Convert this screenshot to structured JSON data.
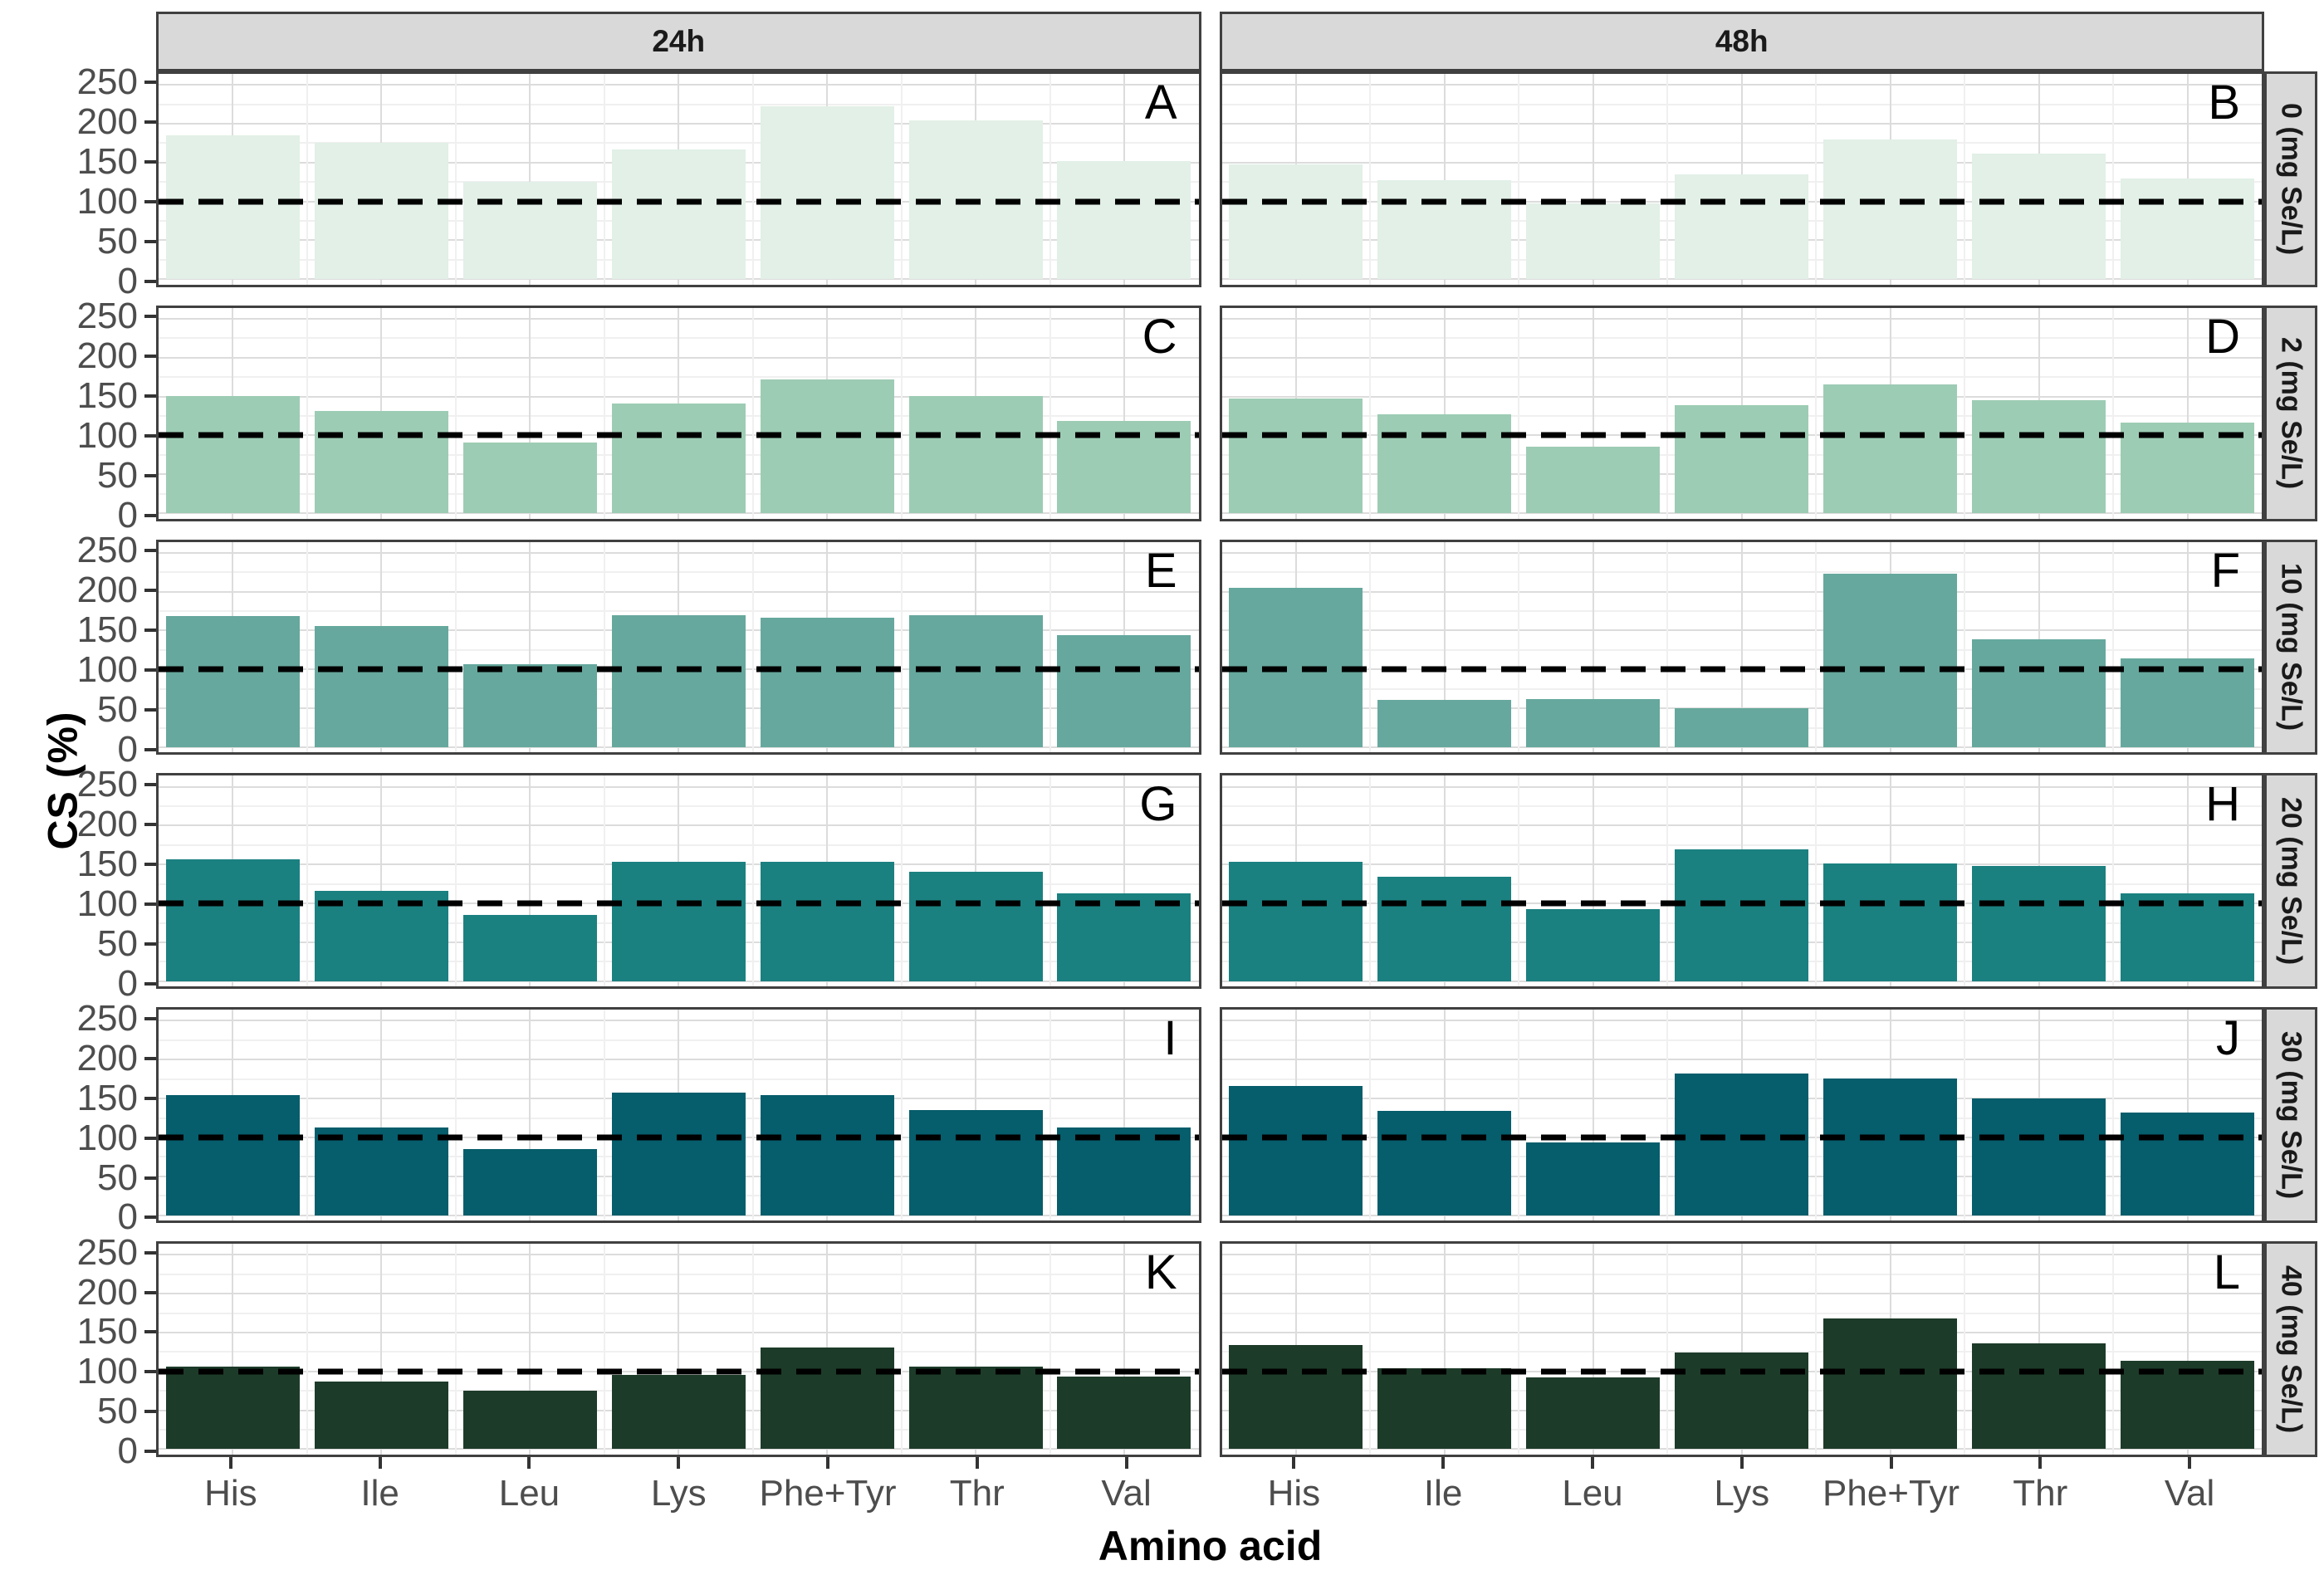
{
  "axes": {
    "y_label": "CS (%)",
    "x_label": "Amino acid"
  },
  "chart_data": {
    "type": "bar",
    "title": "",
    "categories": [
      "His",
      "Ile",
      "Leu",
      "Lys",
      "Phe+Tyr",
      "Thr",
      "Val"
    ],
    "facet_cols": [
      "24h",
      "48h"
    ],
    "facet_rows": [
      "0 (mg Se/L)",
      "2 (mg Se/L)",
      "10 (mg Se/L)",
      "20 (mg Se/L)",
      "30 (mg Se/L)",
      "40 (mg Se/L)"
    ],
    "xlabel": "Amino acid",
    "ylabel": "CS (%)",
    "yticks": [
      0,
      50,
      100,
      150,
      200,
      250
    ],
    "ylim": [
      -7,
      264
    ],
    "ref_line": 100,
    "grid": "major+minor, both axes, light gray, white panel background",
    "legend": "none",
    "row_colors": [
      "#e2f0e7",
      "#9dccb4",
      "#66a89d",
      "#1b8080",
      "#065d6b",
      "#1d3b29"
    ],
    "panels": [
      {
        "label": "A",
        "col": "24h",
        "row": "0 (mg Se/L)",
        "values": [
          185,
          175,
          125,
          167,
          222,
          204,
          152
        ]
      },
      {
        "label": "B",
        "col": "48h",
        "row": "0 (mg Se/L)",
        "values": [
          148,
          127,
          98,
          135,
          180,
          162,
          130
        ]
      },
      {
        "label": "C",
        "col": "24h",
        "row": "2 (mg Se/L)",
        "values": [
          151,
          131,
          91,
          141,
          172,
          151,
          119
        ]
      },
      {
        "label": "D",
        "col": "48h",
        "row": "2 (mg Se/L)",
        "values": [
          148,
          127,
          86,
          139,
          166,
          145,
          117
        ]
      },
      {
        "label": "E",
        "col": "24h",
        "row": "10 (mg Se/L)",
        "values": [
          169,
          156,
          107,
          170,
          166,
          170,
          144
        ]
      },
      {
        "label": "F",
        "col": "48h",
        "row": "10 (mg Se/L)",
        "values": [
          205,
          61,
          62,
          50,
          223,
          139,
          114
        ]
      },
      {
        "label": "G",
        "col": "24h",
        "row": "20 (mg Se/L)",
        "values": [
          157,
          116,
          85,
          153,
          154,
          141,
          113
        ]
      },
      {
        "label": "H",
        "col": "48h",
        "row": "20 (mg Se/L)",
        "values": [
          153,
          134,
          93,
          170,
          151,
          148,
          113
        ]
      },
      {
        "label": "I",
        "col": "24h",
        "row": "30 (mg Se/L)",
        "values": [
          154,
          113,
          85,
          158,
          154,
          135,
          113
        ]
      },
      {
        "label": "J",
        "col": "48h",
        "row": "30 (mg Se/L)",
        "values": [
          166,
          134,
          94,
          182,
          176,
          150,
          132
        ]
      },
      {
        "label": "K",
        "col": "24h",
        "row": "40 (mg Se/L)",
        "values": [
          106,
          87,
          75,
          96,
          131,
          106,
          93
        ]
      },
      {
        "label": "L",
        "col": "48h",
        "row": "40 (mg Se/L)",
        "values": [
          134,
          104,
          92,
          124,
          168,
          136,
          114
        ]
      }
    ]
  }
}
